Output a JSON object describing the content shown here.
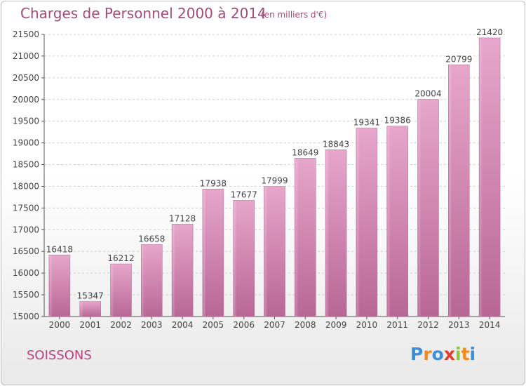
{
  "chart_data": {
    "type": "bar",
    "title": "Charges de Personnel 2000 à 2014",
    "subtitle": "(en milliers d'€)",
    "categories": [
      "2000",
      "2001",
      "2002",
      "2003",
      "2004",
      "2005",
      "2006",
      "2007",
      "2008",
      "2009",
      "2010",
      "2011",
      "2012",
      "2013",
      "2014"
    ],
    "values": [
      16418,
      15347,
      16212,
      16658,
      17128,
      17938,
      17677,
      17999,
      18649,
      18843,
      19341,
      19386,
      20004,
      20799,
      21420
    ],
    "ylim": [
      15000,
      21500
    ],
    "yticks": [
      15000,
      15500,
      16000,
      16500,
      17000,
      17500,
      18000,
      18500,
      19000,
      19500,
      20000,
      20500,
      21000,
      21500
    ],
    "xlabel": "",
    "ylabel": "",
    "grid": true,
    "bar_color": "#c86b9e"
  },
  "city": "SOISSONS",
  "logo": {
    "letters": [
      "P",
      "r",
      "o",
      "x",
      "i",
      "t",
      "i"
    ],
    "colors": [
      "#3a8fd6",
      "#f08a1e",
      "#3a8fd6",
      "#e23c2c",
      "#8cc63f",
      "#f08a1e",
      "#3a8fd6"
    ]
  },
  "colors": {
    "title": "#a64a78",
    "city": "#c0407a"
  }
}
